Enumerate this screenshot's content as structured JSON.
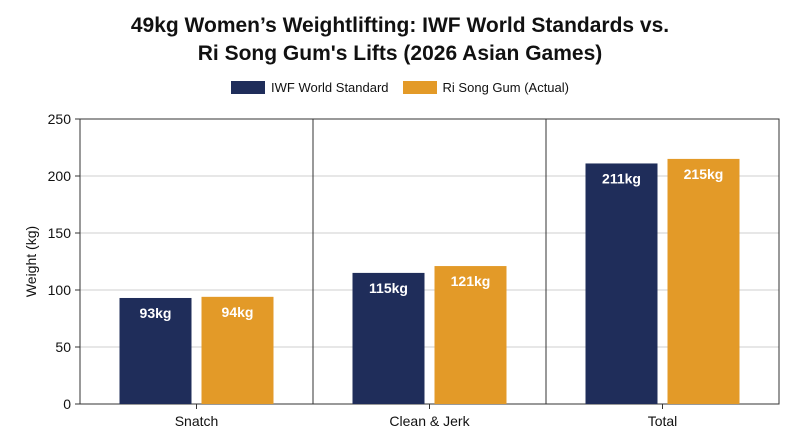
{
  "title_line1": "49kg Women’s Weightlifting: IWF World Standards vs.",
  "title_line2": "Ri Song Gum's Lifts (2026 Asian Games)",
  "chart_data": {
    "type": "bar",
    "title": "49kg Women’s Weightlifting: IWF World Standards vs. Ri Song Gum's Lifts (2026 Asian Games)",
    "categories": [
      "Snatch",
      "Clean & Jerk",
      "Total"
    ],
    "series": [
      {
        "name": "IWF World Standard",
        "values": [
          93,
          115,
          211
        ],
        "labels": [
          "93kg",
          "115kg",
          "211kg"
        ],
        "color": "#1f2d5a"
      },
      {
        "name": "Ri Song Gum (Actual)",
        "values": [
          94,
          121,
          215
        ],
        "labels": [
          "94kg",
          "121kg",
          "215kg"
        ],
        "color": "#e39a28"
      }
    ],
    "ylabel": "Weight (kg)",
    "xlabel": "",
    "ylim": [
      0,
      250
    ],
    "yticks": [
      0,
      50,
      100,
      150,
      200,
      250
    ],
    "grid": "horizontal and category separators",
    "legend_position": "top-center"
  }
}
